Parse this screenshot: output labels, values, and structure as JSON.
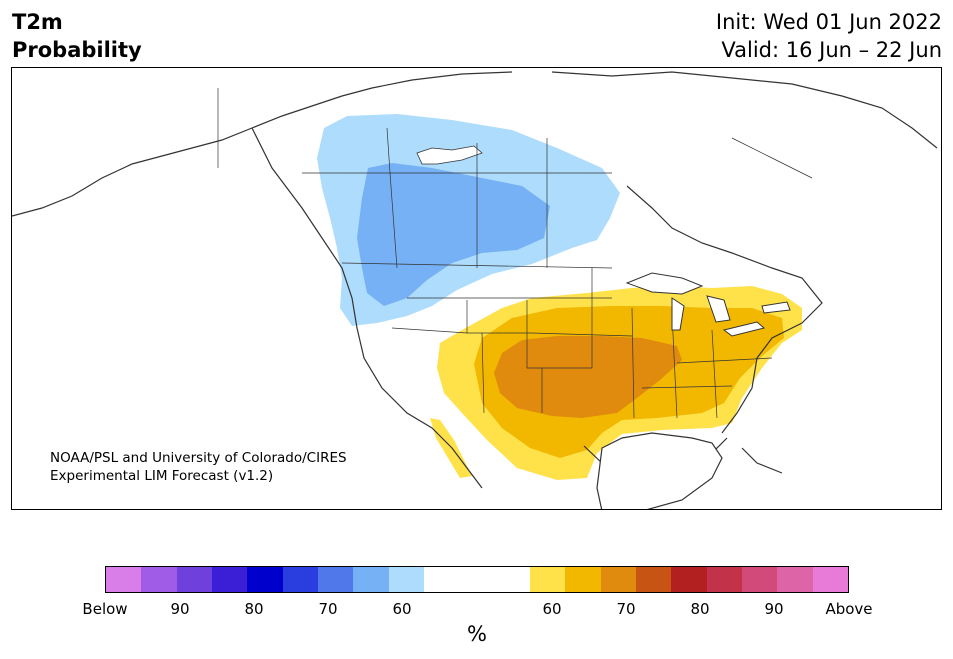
{
  "header": {
    "variable": "T2m",
    "product": "Probability",
    "init": "Init: Wed 01 Jun 2022",
    "valid": "Valid: 16 Jun – 22 Jun"
  },
  "credit": {
    "line1": "NOAA/PSL and University of Colorado/CIRES",
    "line2": "Experimental LIM Forecast (v1.2)"
  },
  "colorbar": {
    "units": "%",
    "labels": [
      "Below",
      "90",
      "80",
      "70",
      "60",
      "60",
      "70",
      "80",
      "90",
      "Above"
    ],
    "colors": [
      "#d97de8",
      "#a05ce6",
      "#7040dd",
      "#3a1fd6",
      "#0000cc",
      "#2a3ddf",
      "#5078ea",
      "#76b0f5",
      "#aedcfc",
      "#ffffff",
      "#ffe14a",
      "#f2b800",
      "#e08a0e",
      "#c85414",
      "#b32020",
      "#c2334a",
      "#d24a7a",
      "#de64a8",
      "#e87ad8"
    ]
  },
  "map_regions": {
    "below_normal": {
      "light_color": "#aedcfc",
      "medium_color": "#76b0f5",
      "area": "Western Canada and northwestern United States"
    },
    "above_normal": {
      "light_color": "#ffe14a",
      "medium_color": "#f2b800",
      "dark_color": "#e08a0e",
      "area": "Central, southern and eastern United States"
    }
  }
}
